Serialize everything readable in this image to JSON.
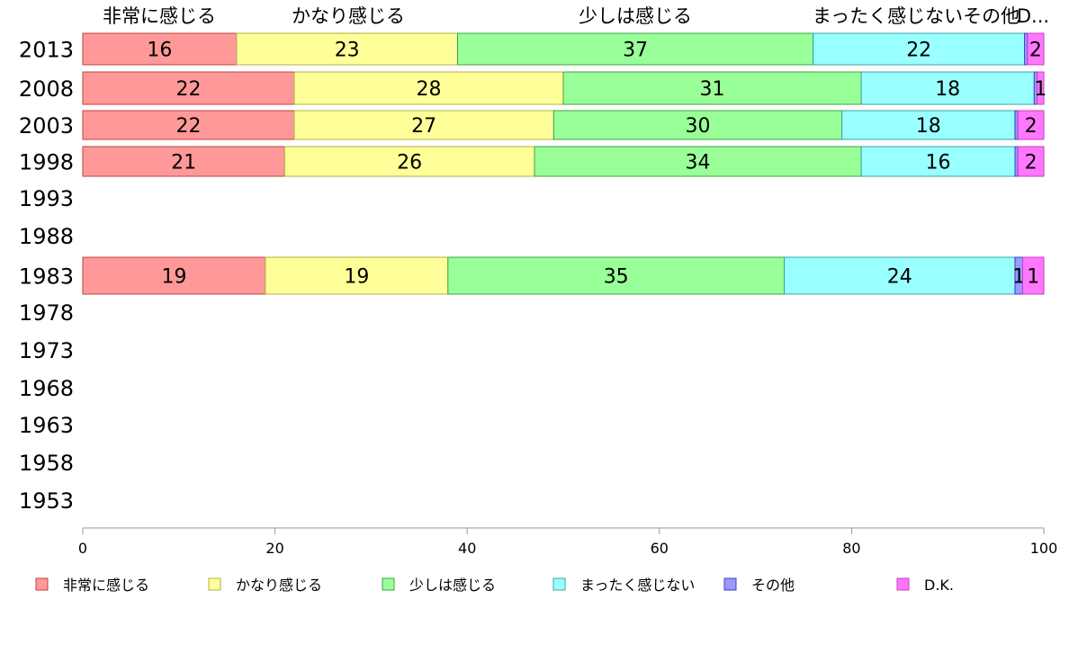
{
  "chart_data": {
    "type": "bar",
    "orientation": "horizontal",
    "stacked": true,
    "categories": [
      "2013",
      "2008",
      "2003",
      "1998",
      "1993",
      "1988",
      "1983",
      "1978",
      "1973",
      "1968",
      "1963",
      "1958",
      "1953"
    ],
    "series": [
      {
        "name": "非常に感じる",
        "color": "#ff9999",
        "stroke": "#c04040",
        "values": [
          16,
          22,
          22,
          21,
          null,
          null,
          19,
          null,
          null,
          null,
          null,
          null,
          null
        ],
        "labels": [
          "16",
          "22",
          "22",
          "21",
          null,
          null,
          "19",
          null,
          null,
          null,
          null,
          null,
          null
        ]
      },
      {
        "name": "かなり感じる",
        "color": "#ffff99",
        "stroke": "#b0b040",
        "values": [
          23,
          28,
          27,
          26,
          null,
          null,
          19,
          null,
          null,
          null,
          null,
          null,
          null
        ],
        "labels": [
          "23",
          "28",
          "27",
          "26",
          null,
          null,
          "19",
          null,
          null,
          null,
          null,
          null,
          null
        ]
      },
      {
        "name": "少しは感じる",
        "color": "#99ff99",
        "stroke": "#40a040",
        "values": [
          37,
          31,
          30,
          34,
          null,
          null,
          35,
          null,
          null,
          null,
          null,
          null,
          null
        ],
        "labels": [
          "37",
          "31",
          "30",
          "34",
          null,
          null,
          "35",
          null,
          null,
          null,
          null,
          null,
          null
        ]
      },
      {
        "name": "まったく感じない",
        "color": "#99ffff",
        "stroke": "#40a0a0",
        "values": [
          22,
          18,
          18,
          16,
          null,
          null,
          24,
          null,
          null,
          null,
          null,
          null,
          null
        ],
        "labels": [
          "22",
          "18",
          "18",
          "16",
          null,
          null,
          "24",
          null,
          null,
          null,
          null,
          null,
          null
        ]
      },
      {
        "name": "その他",
        "color": "#9999ff",
        "stroke": "#4040c0",
        "values": [
          0.3,
          0.3,
          0.3,
          0.3,
          null,
          null,
          0.8,
          null,
          null,
          null,
          null,
          null,
          null
        ],
        "labels": [
          null,
          null,
          null,
          null,
          null,
          null,
          "1",
          null,
          null,
          null,
          null,
          null,
          null
        ]
      },
      {
        "name": "D.K.",
        "color": "#ff77ff",
        "stroke": "#c040c0",
        "values": [
          2,
          1,
          2,
          2,
          null,
          null,
          1,
          null,
          null,
          null,
          null,
          null,
          null
        ],
        "labels": [
          "2",
          "1",
          "2",
          "2",
          null,
          null,
          "1",
          null,
          null,
          null,
          null,
          null,
          null
        ]
      }
    ],
    "top_labels": [
      "非常に感じる",
      "かなり感じる",
      "少しは感じる",
      "まったく感じないその他",
      "D..."
    ],
    "xlim": [
      0,
      100
    ],
    "xticks": [
      "0",
      "20",
      "40",
      "60",
      "80",
      "100"
    ],
    "legend_position": "bottom",
    "grid": false
  }
}
